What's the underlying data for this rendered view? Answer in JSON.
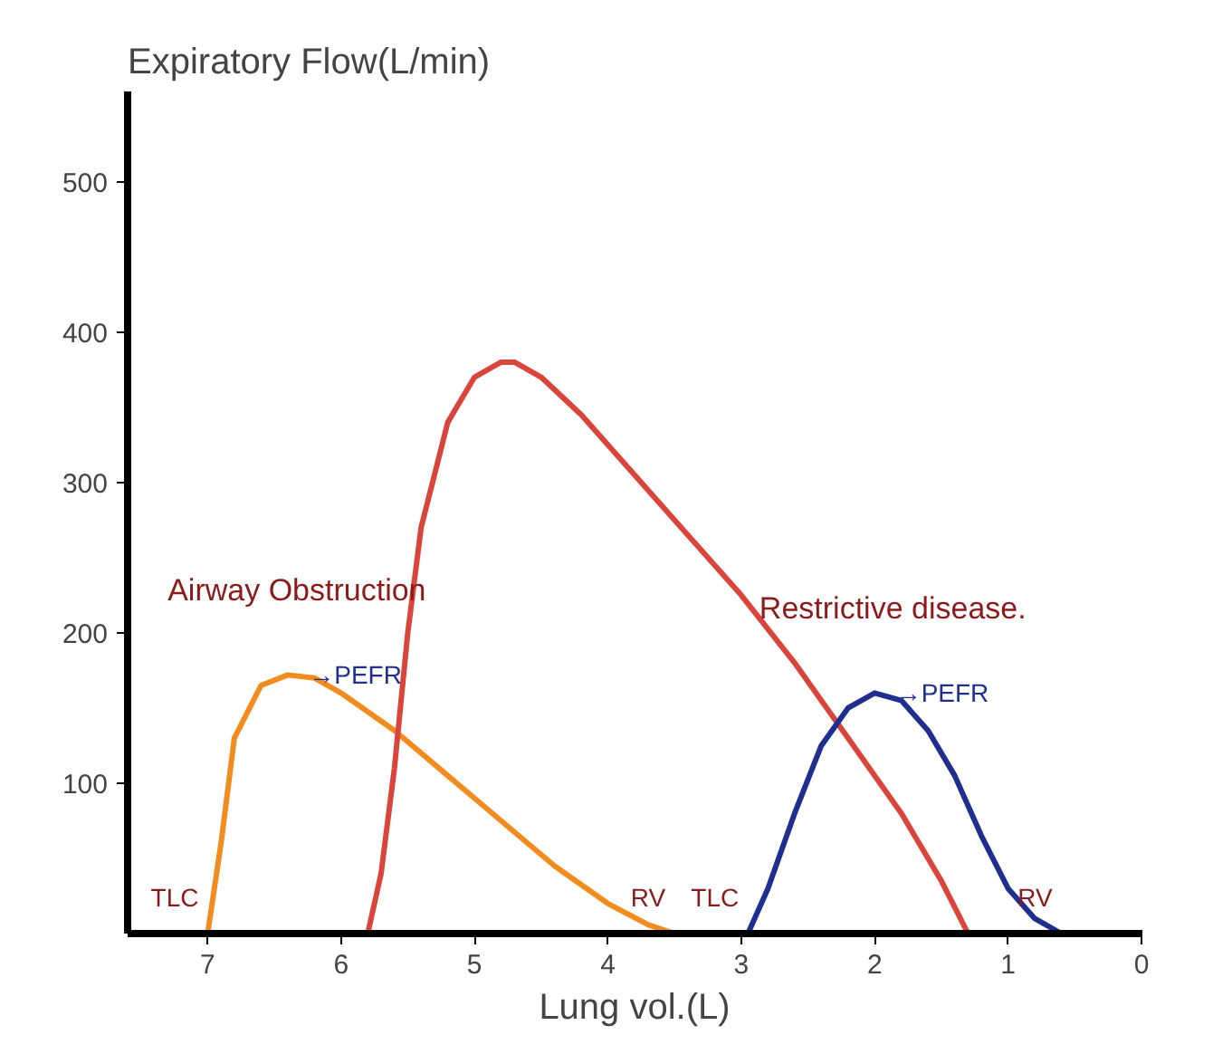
{
  "chart_data": {
    "type": "line",
    "ylabel": "Expiratory Flow(L/min)",
    "xlabel": "Lung vol.(L)",
    "xlim": [
      7.6,
      0
    ],
    "xticks": [
      7,
      6,
      5,
      4,
      3,
      2,
      1,
      0
    ],
    "ylim": [
      0,
      560
    ],
    "yticks": [
      100,
      200,
      300,
      400,
      500
    ],
    "grid": false,
    "marker": "none",
    "line_style": "solid",
    "series": [
      {
        "name": "Airway Obstruction",
        "color": "#f28c1e",
        "x": [
          7,
          6.9,
          6.8,
          6.6,
          6.4,
          6.2,
          6,
          5.6,
          5.2,
          4.8,
          4.4,
          4,
          3.7,
          3.5
        ],
        "values": [
          0,
          60,
          130,
          165,
          172,
          170,
          160,
          135,
          105,
          75,
          45,
          20,
          6,
          0
        ]
      },
      {
        "color": "#d9453a",
        "x": [
          5.8,
          5.7,
          5.6,
          5.5,
          5.4,
          5.2,
          5,
          4.8,
          4.7,
          4.5,
          4.2,
          3.8,
          3.4,
          3,
          2.6,
          2.2,
          1.8,
          1.5,
          1.3
        ],
        "values": [
          0,
          40,
          110,
          200,
          270,
          340,
          370,
          380,
          380,
          370,
          345,
          305,
          265,
          225,
          180,
          130,
          80,
          35,
          0
        ]
      },
      {
        "name": "Restrictive disease.",
        "color": "#1f2f8f",
        "x": [
          2.95,
          2.8,
          2.6,
          2.4,
          2.2,
          2.0,
          1.8,
          1.6,
          1.4,
          1.2,
          1.0,
          0.8,
          0.6
        ],
        "values": [
          0,
          30,
          80,
          125,
          150,
          160,
          155,
          135,
          105,
          65,
          30,
          10,
          0
        ]
      }
    ],
    "annotations": [
      {
        "text": "TLC",
        "x": 7,
        "y": 0
      },
      {
        "text": "RV",
        "x": 3.5,
        "y": 0
      },
      {
        "text": "TLC",
        "x": 2.95,
        "y": 0
      },
      {
        "text": "RV",
        "x": 0.6,
        "y": 0
      },
      {
        "text": "→PEFR",
        "x": 6.35,
        "y": 172
      },
      {
        "text": "→PEFR",
        "x": 1.95,
        "y": 160
      }
    ]
  }
}
